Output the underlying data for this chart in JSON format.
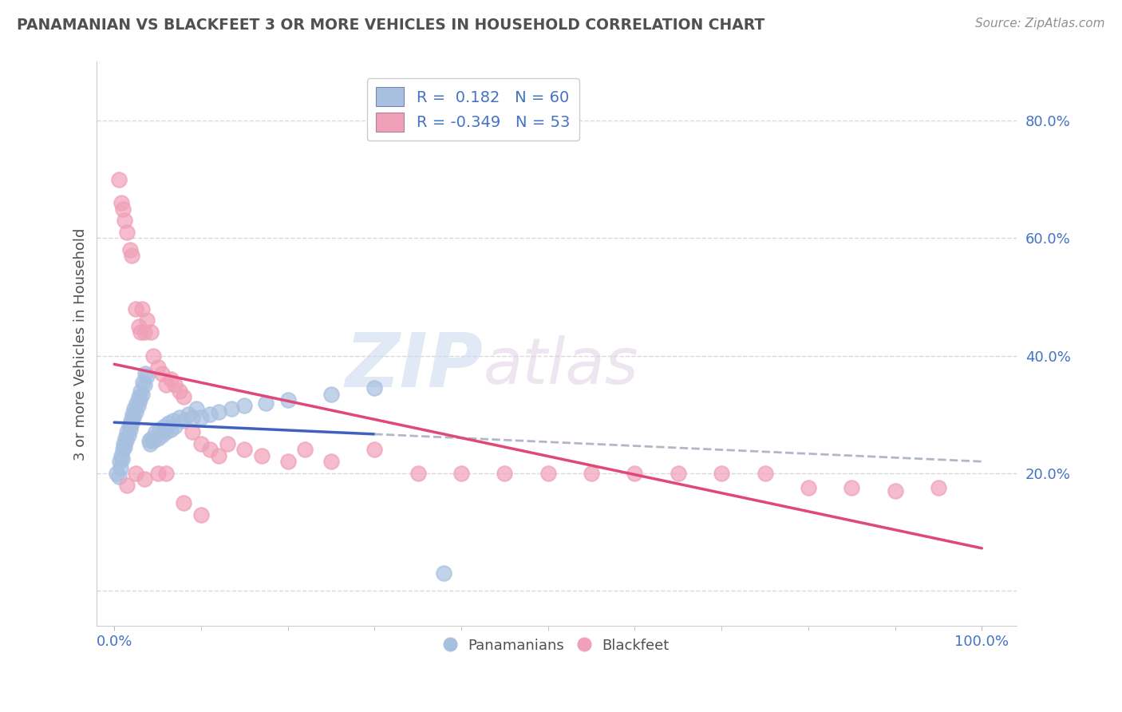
{
  "title": "PANAMANIAN VS BLACKFEET 3 OR MORE VEHICLES IN HOUSEHOLD CORRELATION CHART",
  "source": "Source: ZipAtlas.com",
  "ylabel": "3 or more Vehicles in Household",
  "watermark_zip": "ZIP",
  "watermark_atlas": "atlas",
  "legend_label1": "R =  0.182   N = 60",
  "legend_label2": "R = -0.349   N = 53",
  "blue_scatter_color": "#a8c0e0",
  "pink_scatter_color": "#f0a0b8",
  "blue_line_color": "#4060c0",
  "pink_line_color": "#e04878",
  "dashed_line_color": "#b0b8c8",
  "title_color": "#505050",
  "source_color": "#909090",
  "axis_color": "#4472c4",
  "legend_text_color": "#4472c4",
  "grid_color": "#d0d0d8",
  "background_color": "#ffffff",
  "blue_legend_patch": "#a8c0e0",
  "pink_legend_patch": "#f0a0b8",
  "pan_x": [
    0.003,
    0.005,
    0.006,
    0.007,
    0.008,
    0.009,
    0.01,
    0.011,
    0.012,
    0.013,
    0.014,
    0.015,
    0.016,
    0.017,
    0.018,
    0.019,
    0.02,
    0.021,
    0.022,
    0.023,
    0.025,
    0.026,
    0.027,
    0.028,
    0.029,
    0.03,
    0.032,
    0.033,
    0.035,
    0.036,
    0.038,
    0.04,
    0.041,
    0.043,
    0.045,
    0.048,
    0.05,
    0.052,
    0.055,
    0.058,
    0.06,
    0.062,
    0.065,
    0.068,
    0.07,
    0.075,
    0.08,
    0.085,
    0.09,
    0.095,
    0.1,
    0.11,
    0.12,
    0.135,
    0.15,
    0.175,
    0.2,
    0.25,
    0.3,
    0.38
  ],
  "pan_y": [
    0.2,
    0.195,
    0.22,
    0.21,
    0.23,
    0.225,
    0.24,
    0.25,
    0.245,
    0.26,
    0.255,
    0.27,
    0.265,
    0.28,
    0.275,
    0.29,
    0.285,
    0.3,
    0.295,
    0.31,
    0.305,
    0.32,
    0.315,
    0.33,
    0.325,
    0.34,
    0.335,
    0.355,
    0.35,
    0.37,
    0.365,
    0.255,
    0.25,
    0.26,
    0.255,
    0.27,
    0.26,
    0.275,
    0.265,
    0.28,
    0.27,
    0.285,
    0.275,
    0.29,
    0.28,
    0.295,
    0.29,
    0.3,
    0.295,
    0.31,
    0.295,
    0.3,
    0.305,
    0.31,
    0.315,
    0.32,
    0.325,
    0.335,
    0.345,
    0.03
  ],
  "blk_x": [
    0.005,
    0.008,
    0.01,
    0.012,
    0.015,
    0.018,
    0.02,
    0.025,
    0.028,
    0.03,
    0.032,
    0.035,
    0.038,
    0.042,
    0.045,
    0.05,
    0.055,
    0.06,
    0.065,
    0.07,
    0.075,
    0.08,
    0.09,
    0.1,
    0.11,
    0.12,
    0.13,
    0.15,
    0.17,
    0.2,
    0.22,
    0.25,
    0.3,
    0.35,
    0.4,
    0.45,
    0.5,
    0.55,
    0.6,
    0.65,
    0.7,
    0.75,
    0.8,
    0.85,
    0.9,
    0.95,
    0.015,
    0.025,
    0.035,
    0.05,
    0.06,
    0.08,
    0.1
  ],
  "blk_y": [
    0.7,
    0.66,
    0.65,
    0.63,
    0.61,
    0.58,
    0.57,
    0.48,
    0.45,
    0.44,
    0.48,
    0.44,
    0.46,
    0.44,
    0.4,
    0.38,
    0.37,
    0.35,
    0.36,
    0.35,
    0.34,
    0.33,
    0.27,
    0.25,
    0.24,
    0.23,
    0.25,
    0.24,
    0.23,
    0.22,
    0.24,
    0.22,
    0.24,
    0.2,
    0.2,
    0.2,
    0.2,
    0.2,
    0.2,
    0.2,
    0.2,
    0.2,
    0.175,
    0.175,
    0.17,
    0.175,
    0.18,
    0.2,
    0.19,
    0.2,
    0.2,
    0.15,
    0.13
  ],
  "xlim": [
    -0.02,
    1.04
  ],
  "ylim": [
    -0.06,
    0.9
  ],
  "yticks": [
    0.0,
    0.2,
    0.4,
    0.6,
    0.8
  ],
  "ytick_labels": [
    "",
    "20.0%",
    "40.0%",
    "60.0%",
    "80.0%"
  ],
  "xticks": [
    0.0,
    1.0
  ],
  "xtick_labels": [
    "0.0%",
    "100.0%"
  ]
}
